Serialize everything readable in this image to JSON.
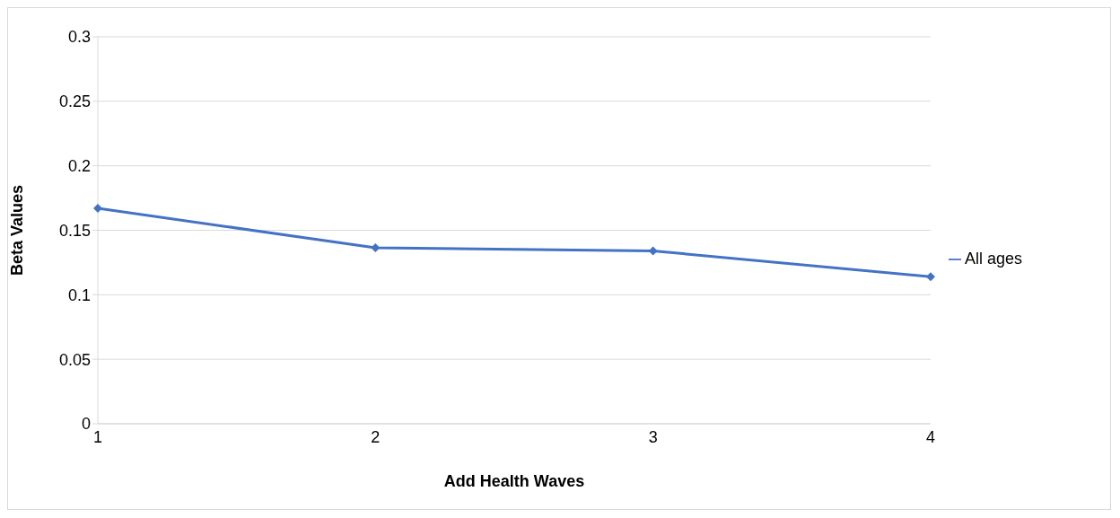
{
  "chart_data": {
    "type": "line",
    "xlabel": "Add Health Waves",
    "ylabel": "Beta Values",
    "categories": [
      "1",
      "2",
      "3",
      "4"
    ],
    "series": [
      {
        "name": "All ages",
        "color": "#4472c4",
        "values": [
          0.167,
          0.1365,
          0.134,
          0.114
        ]
      }
    ],
    "ylim": [
      0,
      0.3
    ],
    "yticks": [
      0,
      0.05,
      0.1,
      0.15,
      0.2,
      0.25,
      0.3
    ],
    "grid": "y",
    "legend": "right",
    "marker": "diamond"
  }
}
